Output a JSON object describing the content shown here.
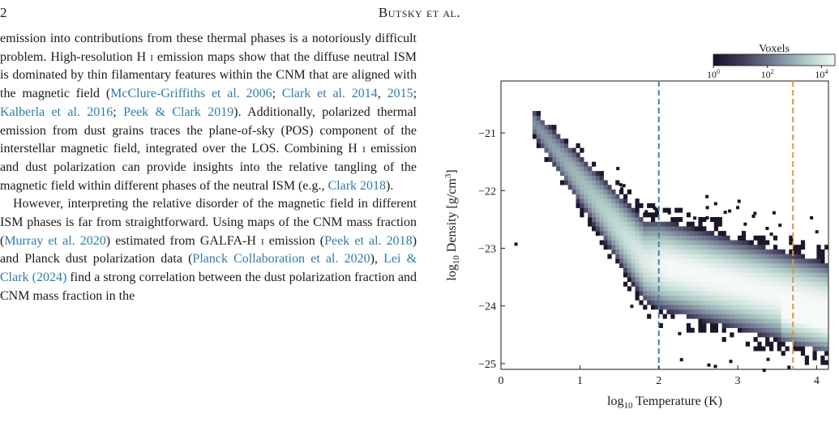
{
  "header": {
    "page_number": "2",
    "running_title": "Butsky et al."
  },
  "body_text": {
    "p1": [
      {
        "t": "emission into contributions from these thermal phases is a notoriously difficult problem. High-resolution H "
      },
      {
        "t": "i",
        "cls": "sc"
      },
      {
        "t": " emission maps show that the diffuse neutral ISM is dominated by thin filamentary features within the CNM that are aligned with the magnetic field ("
      },
      {
        "t": "McClure-Griffiths et al. 2006",
        "link": true
      },
      {
        "t": "; "
      },
      {
        "t": "Clark et al. 2014",
        "link": true
      },
      {
        "t": ", "
      },
      {
        "t": "2015",
        "link": true
      },
      {
        "t": "; "
      },
      {
        "t": "Kalberla et al. 2016",
        "link": true
      },
      {
        "t": "; "
      },
      {
        "t": "Peek & Clark 2019",
        "link": true
      },
      {
        "t": "). Additionally, polarized thermal emission from dust grains traces the plane-of-sky (POS) component of the interstellar magnetic field, integrated over the LOS. Combining H "
      },
      {
        "t": "i",
        "cls": "sc"
      },
      {
        "t": " emission and dust polarization can provide insights into the relative tangling of the magnetic field within different phases of the neutral ISM (e.g., "
      },
      {
        "t": "Clark 2018",
        "link": true
      },
      {
        "t": ")."
      }
    ],
    "p2": [
      {
        "t": "However, interpreting the relative disorder of the magnetic field in different ISM phases is far from straightforward. Using maps of the CNM mass fraction ("
      },
      {
        "t": "Murray et al. 2020",
        "link": true
      },
      {
        "t": ") estimated from GALFA-H "
      },
      {
        "t": "i",
        "cls": "sc"
      },
      {
        "t": " emission ("
      },
      {
        "t": "Peek et al. 2018",
        "link": true
      },
      {
        "t": ") and Planck dust polarization data ("
      },
      {
        "t": "Planck Collaboration et al. 2020",
        "link": true
      },
      {
        "t": "), "
      },
      {
        "t": "Lei & Clark (2024)",
        "link": true
      },
      {
        "t": " find a strong correlation between the dust polarization fraction and CNM mass fraction in the"
      }
    ]
  },
  "colors": {
    "link": "#2e7ca8",
    "vline_blue": "#4a7fa8",
    "vline_orange": "#f0913a"
  },
  "chart_data": {
    "type": "heatmap",
    "xlabel": "log10 Temperature (K)",
    "ylabel": "log10 Density [g/cm3]",
    "xlim": [
      0,
      4.15
    ],
    "ylim": [
      -25.1,
      -20.1
    ],
    "x_ticks": [
      0,
      1,
      2,
      3,
      4
    ],
    "y_ticks": [
      -25,
      -24,
      -23,
      -22,
      -21
    ],
    "colorbar": {
      "label": "Voxels",
      "scale": "log",
      "ticks": [
        "10^0",
        "10^2",
        "10^4"
      ],
      "range": [
        0,
        4.5
      ]
    },
    "vlines": [
      {
        "x": 2.0,
        "style": "dashed",
        "color": "#4a7fa8"
      },
      {
        "x": 3.7,
        "style": "dashed",
        "color": "#f0913a"
      }
    ],
    "grid": false
  }
}
